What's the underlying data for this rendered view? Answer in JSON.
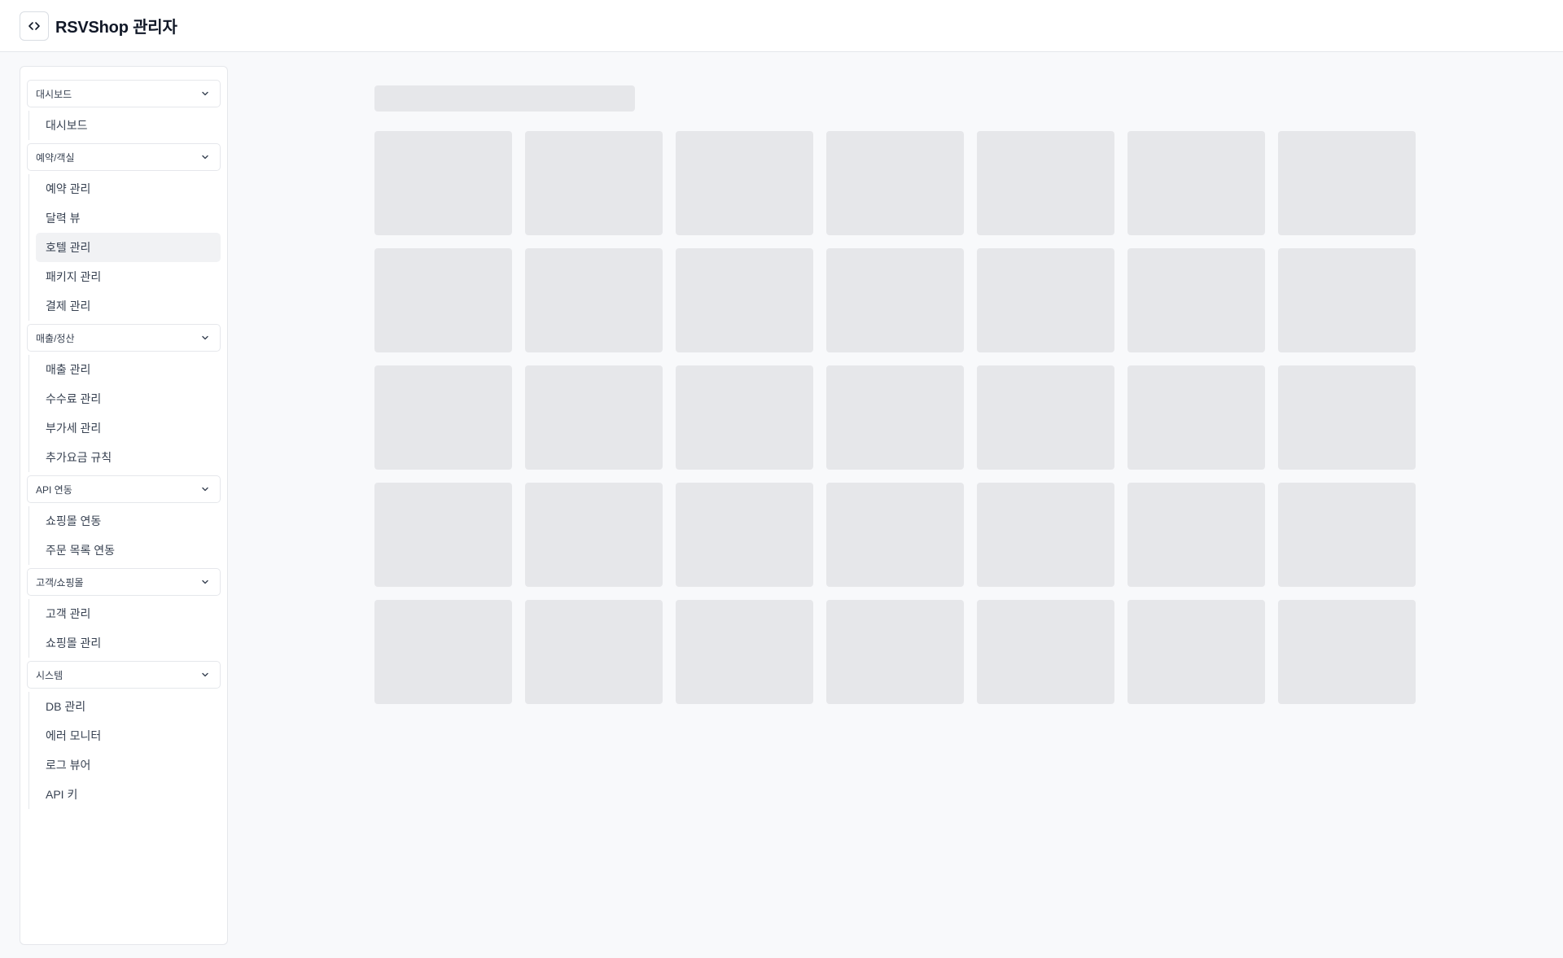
{
  "header": {
    "app_title": "RSVShop 관리자",
    "toggle_icon": "code-brackets-icon"
  },
  "sidebar": {
    "groups": [
      {
        "label": "대시보드",
        "items": [
          {
            "label": "대시보드"
          }
        ]
      },
      {
        "label": "예약/객실",
        "items": [
          {
            "label": "예약 관리"
          },
          {
            "label": "달력 뷰"
          },
          {
            "label": "호텔 관리",
            "active": true
          },
          {
            "label": "패키지 관리"
          },
          {
            "label": "결제 관리"
          }
        ]
      },
      {
        "label": "매출/정산",
        "items": [
          {
            "label": "매출 관리"
          },
          {
            "label": "수수료 관리"
          },
          {
            "label": "부가세 관리"
          },
          {
            "label": "추가요금 규칙"
          }
        ]
      },
      {
        "label": "API 연동",
        "items": [
          {
            "label": "쇼핑몰 연동"
          },
          {
            "label": "주문 목록 연동"
          }
        ]
      },
      {
        "label": "고객/쇼핑몰",
        "items": [
          {
            "label": "고객 관리"
          },
          {
            "label": "쇼핑몰 관리"
          }
        ]
      },
      {
        "label": "시스템",
        "items": [
          {
            "label": "DB 관리"
          },
          {
            "label": "에러 모니터"
          },
          {
            "label": "로그 뷰어"
          },
          {
            "label": "API 키"
          }
        ]
      }
    ]
  },
  "main": {
    "loading_skeleton": {
      "rows": 5,
      "columns": 7
    }
  },
  "colors": {
    "background": "#f8f9fb",
    "skeleton": "#e6e7ea",
    "active_item": "#f1f2f4"
  }
}
